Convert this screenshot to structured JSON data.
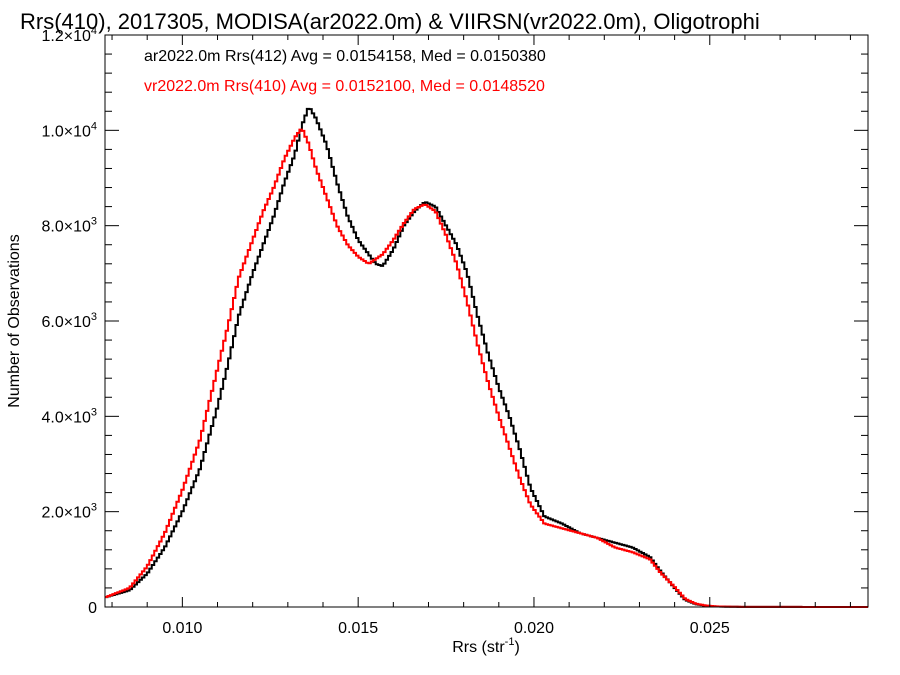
{
  "chart_data": {
    "type": "line",
    "title": "Rrs(410), 2017305, MODISA(ar2022.0m) & VIIRSN(vr2022.0m), Oligotrophi",
    "xlabel": "Rrs (str",
    "xlabel_sup": "-1",
    "xlabel_end": ")",
    "ylabel": "Number of Observations",
    "xlim": [
      0.0078,
      0.0295
    ],
    "ylim": [
      0,
      12000
    ],
    "x_ticks": [
      {
        "value": 0.01,
        "label": "0.010"
      },
      {
        "value": 0.015,
        "label": "0.015"
      },
      {
        "value": 0.02,
        "label": "0.020"
      },
      {
        "value": 0.025,
        "label": "0.025"
      }
    ],
    "y_ticks": [
      {
        "value": 0,
        "mant": "0",
        "exp": ""
      },
      {
        "value": 2000,
        "mant": "2.0×10",
        "exp": "3"
      },
      {
        "value": 4000,
        "mant": "4.0×10",
        "exp": "3"
      },
      {
        "value": 6000,
        "mant": "6.0×10",
        "exp": "3"
      },
      {
        "value": 8000,
        "mant": "8.0×10",
        "exp": "3"
      },
      {
        "value": 10000,
        "mant": "1.0×10",
        "exp": "4"
      },
      {
        "value": 12000,
        "mant": "1.2×10",
        "exp": "4"
      }
    ],
    "series": [
      {
        "name": "ar2022.0m Rrs(412) Avg = 0.0154158, Med = 0.0150380",
        "color": "#000000",
        "x": [
          0.0078,
          0.0085,
          0.009,
          0.0095,
          0.01,
          0.0105,
          0.011,
          0.0113,
          0.0116,
          0.012,
          0.0123,
          0.0126,
          0.0129,
          0.0132,
          0.0134,
          0.0136,
          0.0138,
          0.0141,
          0.0144,
          0.0147,
          0.015,
          0.0153,
          0.0155,
          0.0157,
          0.016,
          0.0163,
          0.0166,
          0.0169,
          0.0172,
          0.0175,
          0.0178,
          0.0181,
          0.0184,
          0.0187,
          0.019,
          0.0193,
          0.0196,
          0.0199,
          0.0203,
          0.0208,
          0.0213,
          0.0218,
          0.0223,
          0.0228,
          0.0233,
          0.0236,
          0.024,
          0.0243,
          0.0246,
          0.0249,
          0.0252,
          0.0256,
          0.026,
          0.027,
          0.028,
          0.0295
        ],
        "y": [
          200,
          350,
          700,
          1250,
          2000,
          2900,
          4200,
          5100,
          6100,
          7000,
          7600,
          8200,
          8900,
          9500,
          10100,
          10500,
          10250,
          9700,
          8900,
          8200,
          7700,
          7400,
          7200,
          7150,
          7500,
          8000,
          8300,
          8500,
          8400,
          8000,
          7600,
          7000,
          6100,
          5300,
          4600,
          4000,
          3300,
          2500,
          1900,
          1750,
          1550,
          1450,
          1350,
          1250,
          1050,
          750,
          400,
          150,
          60,
          25,
          10,
          5,
          3,
          2,
          1,
          0
        ]
      },
      {
        "name": "vr2022.0m Rrs(410) Avg = 0.0152100, Med = 0.0148520",
        "color": "#ff0000",
        "x": [
          0.0078,
          0.0085,
          0.009,
          0.0095,
          0.01,
          0.0105,
          0.011,
          0.0113,
          0.0116,
          0.012,
          0.0123,
          0.0126,
          0.0129,
          0.0132,
          0.0134,
          0.0136,
          0.0138,
          0.0141,
          0.0144,
          0.0147,
          0.015,
          0.0153,
          0.0155,
          0.0157,
          0.016,
          0.0163,
          0.0166,
          0.0169,
          0.0172,
          0.0175,
          0.0178,
          0.0181,
          0.0184,
          0.0187,
          0.019,
          0.0193,
          0.0196,
          0.0199,
          0.0203,
          0.0208,
          0.0213,
          0.0218,
          0.0223,
          0.0228,
          0.0233,
          0.0236,
          0.024,
          0.0243,
          0.0246,
          0.0249,
          0.0252,
          0.0256,
          0.026,
          0.027,
          0.028,
          0.0295
        ],
        "y": [
          200,
          400,
          850,
          1550,
          2450,
          3500,
          5000,
          5900,
          6900,
          7700,
          8300,
          8800,
          9400,
          9850,
          10050,
          9700,
          9200,
          8600,
          8000,
          7600,
          7350,
          7200,
          7300,
          7400,
          7700,
          8050,
          8350,
          8450,
          8300,
          7800,
          7200,
          6400,
          5500,
          4700,
          4000,
          3350,
          2700,
          2150,
          1750,
          1650,
          1550,
          1450,
          1250,
          1150,
          1000,
          720,
          420,
          170,
          70,
          30,
          12,
          6,
          3,
          2,
          1,
          0
        ]
      }
    ],
    "grid": false,
    "legend_position": "top-left"
  }
}
